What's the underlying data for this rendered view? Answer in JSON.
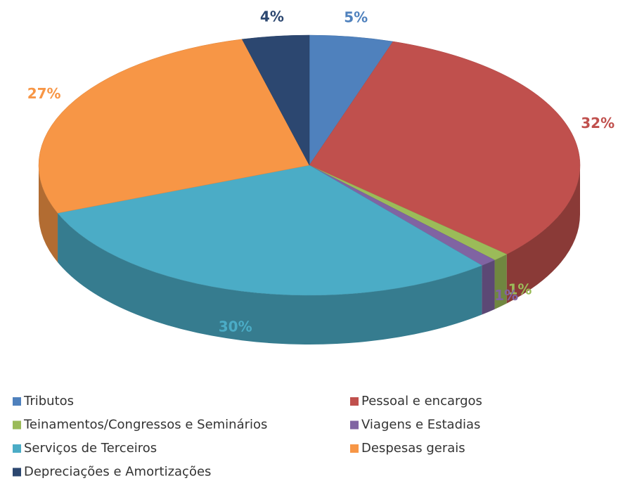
{
  "chart_data": {
    "type": "pie",
    "categories": [
      "Tributos",
      "Pessoal e encargos",
      "Teinamentos/Congressos e Seminários",
      "Viagens e Estadias",
      "Serviços de Terceiros",
      "Despesas gerais",
      "Depreciações e Amortizações"
    ],
    "values": [
      5,
      32,
      1,
      1,
      30,
      27,
      4
    ],
    "value_labels": [
      "5%",
      "32%",
      "1%",
      "1%",
      "30%",
      "27%",
      "4%"
    ],
    "colors": [
      "#4f81bd",
      "#c0504d",
      "#9bbb59",
      "#8064a2",
      "#4bacc6",
      "#f79646",
      "#2c4770"
    ],
    "legend": "bottom"
  }
}
